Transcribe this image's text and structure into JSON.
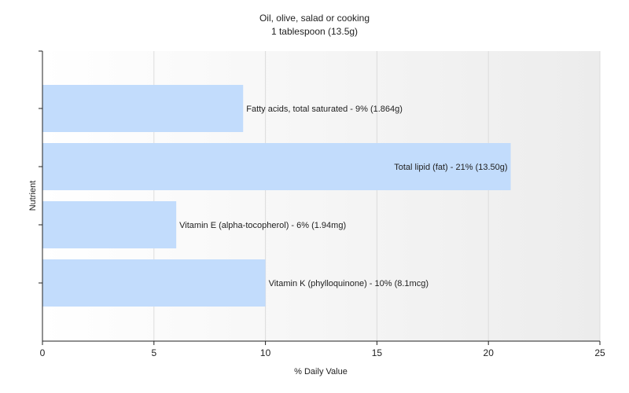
{
  "chart_data": {
    "type": "bar",
    "orientation": "horizontal",
    "title": "Oil, olive, salad or cooking",
    "subtitle": "1 tablespoon (13.5g)",
    "xlabel": "% Daily Value",
    "ylabel": "Nutrient",
    "xlim": [
      0,
      25
    ],
    "xticks": [
      0,
      5,
      10,
      15,
      20,
      25
    ],
    "grid": true,
    "legend": "none",
    "bar_color": "#c2dcfc",
    "categories": [
      "Fatty acids, total saturated",
      "Total lipid (fat)",
      "Vitamin E (alpha-tocopherol)",
      "Vitamin K (phylloquinone)"
    ],
    "values": [
      9,
      21,
      6,
      10
    ],
    "labels": [
      "Fatty acids, total saturated - 9% (1.864g)",
      "Total lipid (fat) - 21% (13.50g)",
      "Vitamin E (alpha-tocopherol) - 6% (1.94mg)",
      "Vitamin K (phylloquinone) - 10% (8.1mcg)"
    ]
  }
}
